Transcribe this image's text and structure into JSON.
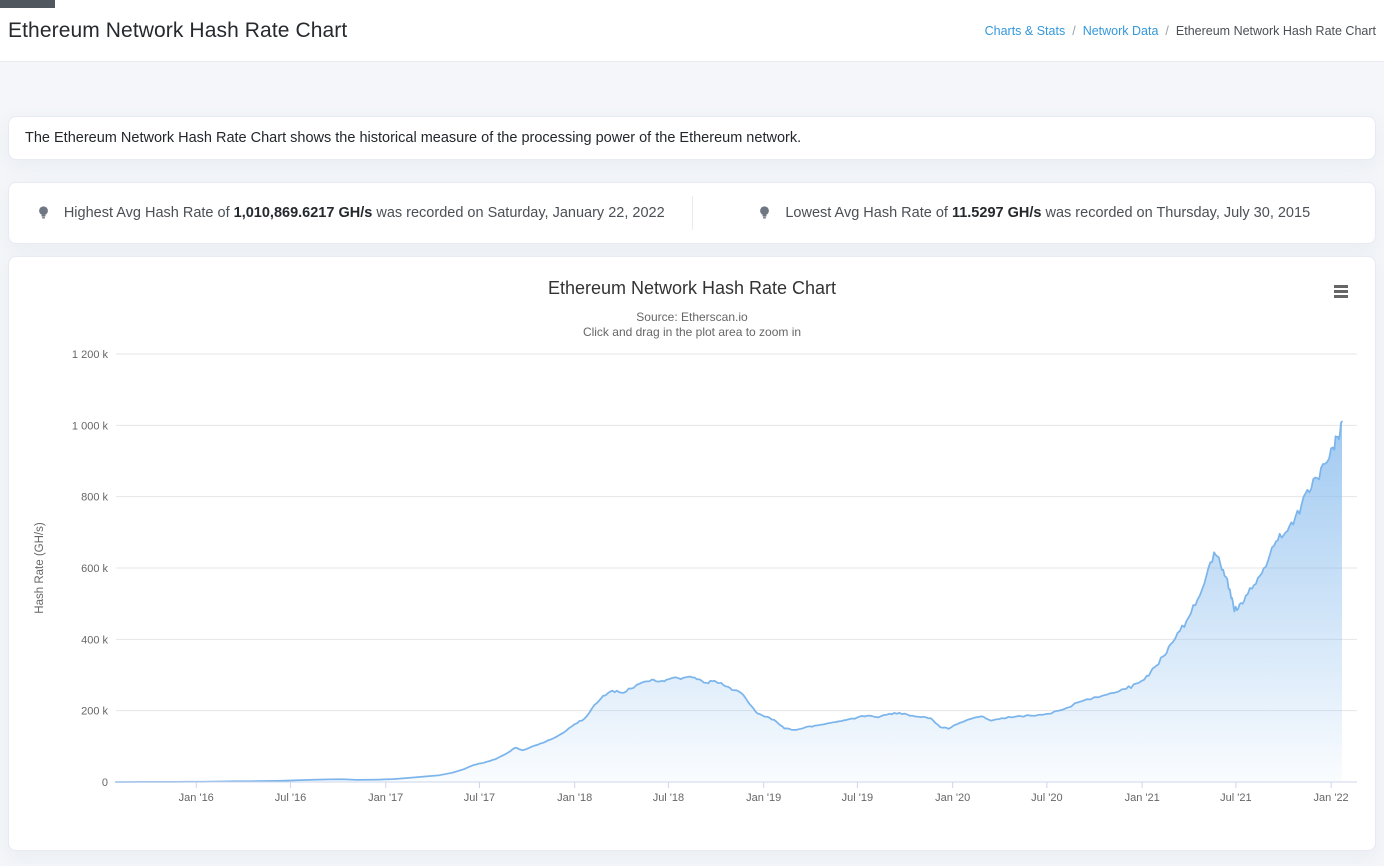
{
  "header": {
    "title": "Ethereum Network Hash Rate Chart"
  },
  "breadcrumb": {
    "separator": "/",
    "items": [
      {
        "label": "Charts & Stats"
      },
      {
        "label": "Network Data"
      },
      {
        "label": "Ethereum Network Hash Rate Chart"
      }
    ]
  },
  "description": {
    "text": "The Ethereum Network Hash Rate Chart shows the historical measure of the processing power of the Ethereum network."
  },
  "stats": {
    "highest": {
      "icon": "lightbulb-icon",
      "prefix": "Highest Avg Hash Rate of ",
      "value": "1,010,869.6217 GH/s",
      "suffix": " was recorded on Saturday, January 22, 2022"
    },
    "lowest": {
      "icon": "lightbulb-icon",
      "prefix": "Lowest Avg Hash Rate of ",
      "value": "11.5297 GH/s",
      "suffix": " was recorded on Thursday, July 30, 2015"
    }
  },
  "chart": {
    "title": "Ethereum Network Hash Rate Chart",
    "subtitle_source": "Source: Etherscan.io",
    "subtitle_hint": "Click and drag in the plot area to zoom in",
    "menu_icon": "hamburger-icon"
  },
  "colors": {
    "accent_link": "#3498db",
    "series_line": "#7cb5ec",
    "grid_line": "#e6e6e6",
    "axis_line": "#ccd6eb",
    "axis_text": "#666666"
  },
  "chart_data": {
    "type": "area",
    "title": "Ethereum Network Hash Rate Chart",
    "subtitle": [
      "Source: Etherscan.io",
      "Click and drag in the plot area to zoom in"
    ],
    "xlabel": "",
    "ylabel": "Hash Rate (GH/s)",
    "values_unit": "GH/s",
    "ylim": [
      0,
      1200000
    ],
    "grid": "horizontal",
    "legend": "none",
    "y_ticks": [
      {
        "value": 0,
        "label": "0"
      },
      {
        "value": 200000,
        "label": "200 k"
      },
      {
        "value": 400000,
        "label": "400 k"
      },
      {
        "value": 600000,
        "label": "600 k"
      },
      {
        "value": 800000,
        "label": "800 k"
      },
      {
        "value": 1000000,
        "label": "1 000 k"
      },
      {
        "value": 1200000,
        "label": "1 200 k"
      }
    ],
    "x_ticks": [
      {
        "date": "2016-01-01",
        "label": "Jan '16"
      },
      {
        "date": "2016-07-01",
        "label": "Jul '16"
      },
      {
        "date": "2017-01-01",
        "label": "Jan '17"
      },
      {
        "date": "2017-07-01",
        "label": "Jul '17"
      },
      {
        "date": "2018-01-01",
        "label": "Jan '18"
      },
      {
        "date": "2018-07-01",
        "label": "Jul '18"
      },
      {
        "date": "2019-01-01",
        "label": "Jan '19"
      },
      {
        "date": "2019-07-01",
        "label": "Jul '19"
      },
      {
        "date": "2020-01-01",
        "label": "Jan '20"
      },
      {
        "date": "2020-07-01",
        "label": "Jul '20"
      },
      {
        "date": "2021-01-01",
        "label": "Jan '21"
      },
      {
        "date": "2021-07-01",
        "label": "Jul '21"
      },
      {
        "date": "2022-01-01",
        "label": "Jan '22"
      }
    ],
    "series": [
      {
        "name": "Hash Rate",
        "color": "#7cb5ec",
        "points": [
          [
            "2015-07-30",
            11.5297
          ],
          [
            "2015-08-20",
            120
          ],
          [
            "2015-09-15",
            180
          ],
          [
            "2015-10-15",
            260
          ],
          [
            "2015-11-15",
            350
          ],
          [
            "2015-12-15",
            550
          ],
          [
            "2016-01-15",
            900
          ],
          [
            "2016-02-15",
            1400
          ],
          [
            "2016-03-15",
            1900
          ],
          [
            "2016-04-15",
            2300
          ],
          [
            "2016-05-15",
            2700
          ],
          [
            "2016-06-15",
            3600
          ],
          [
            "2016-07-15",
            4800
          ],
          [
            "2016-08-15",
            6200
          ],
          [
            "2016-09-15",
            7200
          ],
          [
            "2016-10-10",
            7600
          ],
          [
            "2016-11-05",
            5900
          ],
          [
            "2016-12-01",
            6300
          ],
          [
            "2016-12-20",
            6800
          ],
          [
            "2017-01-15",
            8200
          ],
          [
            "2017-02-15",
            11500
          ],
          [
            "2017-03-15",
            15000
          ],
          [
            "2017-04-15",
            19000
          ],
          [
            "2017-05-10",
            26000
          ],
          [
            "2017-06-01",
            36000
          ],
          [
            "2017-06-20",
            48000
          ],
          [
            "2017-07-10",
            54000
          ],
          [
            "2017-08-01",
            64000
          ],
          [
            "2017-08-20",
            78000
          ],
          [
            "2017-09-08",
            96000
          ],
          [
            "2017-09-22",
            89000
          ],
          [
            "2017-10-10",
            99000
          ],
          [
            "2017-11-01",
            110000
          ],
          [
            "2017-11-20",
            122000
          ],
          [
            "2017-12-10",
            138000
          ],
          [
            "2018-01-01",
            162000
          ],
          [
            "2018-01-20",
            178000
          ],
          [
            "2018-02-08",
            216000
          ],
          [
            "2018-02-25",
            242000
          ],
          [
            "2018-03-15",
            256000
          ],
          [
            "2018-04-01",
            250000
          ],
          [
            "2018-04-20",
            262000
          ],
          [
            "2018-05-10",
            278000
          ],
          [
            "2018-05-30",
            287000
          ],
          [
            "2018-06-15",
            282000
          ],
          [
            "2018-07-01",
            288000
          ],
          [
            "2018-07-20",
            291000
          ],
          [
            "2018-08-08",
            295000
          ],
          [
            "2018-08-25",
            288000
          ],
          [
            "2018-09-12",
            278000
          ],
          [
            "2018-09-28",
            284000
          ],
          [
            "2018-10-15",
            272000
          ],
          [
            "2018-11-01",
            258000
          ],
          [
            "2018-11-18",
            250000
          ],
          [
            "2018-12-05",
            218000
          ],
          [
            "2018-12-20",
            192000
          ],
          [
            "2019-01-08",
            183000
          ],
          [
            "2019-01-25",
            170000
          ],
          [
            "2019-02-10",
            150000
          ],
          [
            "2019-02-28",
            146000
          ],
          [
            "2019-03-20",
            152000
          ],
          [
            "2019-04-10",
            158000
          ],
          [
            "2019-05-01",
            163000
          ],
          [
            "2019-05-20",
            168000
          ],
          [
            "2019-06-10",
            174000
          ],
          [
            "2019-07-01",
            181000
          ],
          [
            "2019-07-20",
            186000
          ],
          [
            "2019-08-10",
            181000
          ],
          [
            "2019-09-01",
            191000
          ],
          [
            "2019-09-20",
            194000
          ],
          [
            "2019-10-10",
            186000
          ],
          [
            "2019-11-01",
            182000
          ],
          [
            "2019-11-20",
            179000
          ],
          [
            "2019-12-08",
            154000
          ],
          [
            "2019-12-24",
            149000
          ],
          [
            "2020-01-15",
            166000
          ],
          [
            "2020-02-05",
            177000
          ],
          [
            "2020-02-25",
            184000
          ],
          [
            "2020-03-15",
            172000
          ],
          [
            "2020-04-05",
            179000
          ],
          [
            "2020-05-01",
            183000
          ],
          [
            "2020-06-01",
            186000
          ],
          [
            "2020-07-01",
            191000
          ],
          [
            "2020-08-01",
            203000
          ],
          [
            "2020-09-01",
            224000
          ],
          [
            "2020-10-01",
            238000
          ],
          [
            "2020-11-01",
            249000
          ],
          [
            "2020-12-01",
            261000
          ],
          [
            "2020-12-20",
            276000
          ],
          [
            "2021-01-10",
            298000
          ],
          [
            "2021-01-25",
            322000
          ],
          [
            "2021-02-10",
            352000
          ],
          [
            "2021-02-25",
            386000
          ],
          [
            "2021-03-15",
            424000
          ],
          [
            "2021-04-01",
            462000
          ],
          [
            "2021-04-18",
            512000
          ],
          [
            "2021-05-05",
            578000
          ],
          [
            "2021-05-20",
            644000
          ],
          [
            "2021-06-01",
            612000
          ],
          [
            "2021-06-12",
            575000
          ],
          [
            "2021-06-22",
            515000
          ],
          [
            "2021-06-28",
            478000
          ],
          [
            "2021-07-08",
            498000
          ],
          [
            "2021-07-20",
            522000
          ],
          [
            "2021-08-05",
            552000
          ],
          [
            "2021-08-20",
            585000
          ],
          [
            "2021-09-05",
            638000
          ],
          [
            "2021-09-20",
            678000
          ],
          [
            "2021-10-05",
            700000
          ],
          [
            "2021-10-20",
            722000
          ],
          [
            "2021-11-05",
            778000
          ],
          [
            "2021-11-20",
            812000
          ],
          [
            "2021-12-05",
            852000
          ],
          [
            "2021-12-20",
            892000
          ],
          [
            "2022-01-05",
            938000
          ],
          [
            "2022-01-14",
            968000
          ],
          [
            "2022-01-22",
            1010869.6217
          ]
        ]
      }
    ]
  }
}
